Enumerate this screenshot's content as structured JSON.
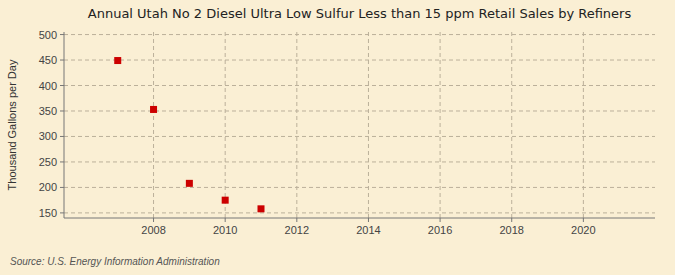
{
  "chart_data": {
    "type": "scatter",
    "title": "Annual Utah No 2 Diesel Ultra Low Sulfur Less than 15 ppm Retail Sales by Refiners",
    "ylabel": "Thousand Gallons per Day",
    "source": "Source: U.S. Energy Information Administration",
    "x": [
      2007,
      2008,
      2009,
      2010,
      2011
    ],
    "values": [
      449,
      353,
      208,
      175,
      158
    ],
    "color": "#cc0000",
    "marker": "square",
    "xlim": [
      2005.5,
      2022
    ],
    "xticks": [
      2008,
      2010,
      2012,
      2014,
      2016,
      2018,
      2020
    ],
    "ylim": [
      140,
      505
    ],
    "yticks": [
      150,
      200,
      250,
      300,
      350,
      400,
      450,
      500
    ],
    "grid": true
  }
}
